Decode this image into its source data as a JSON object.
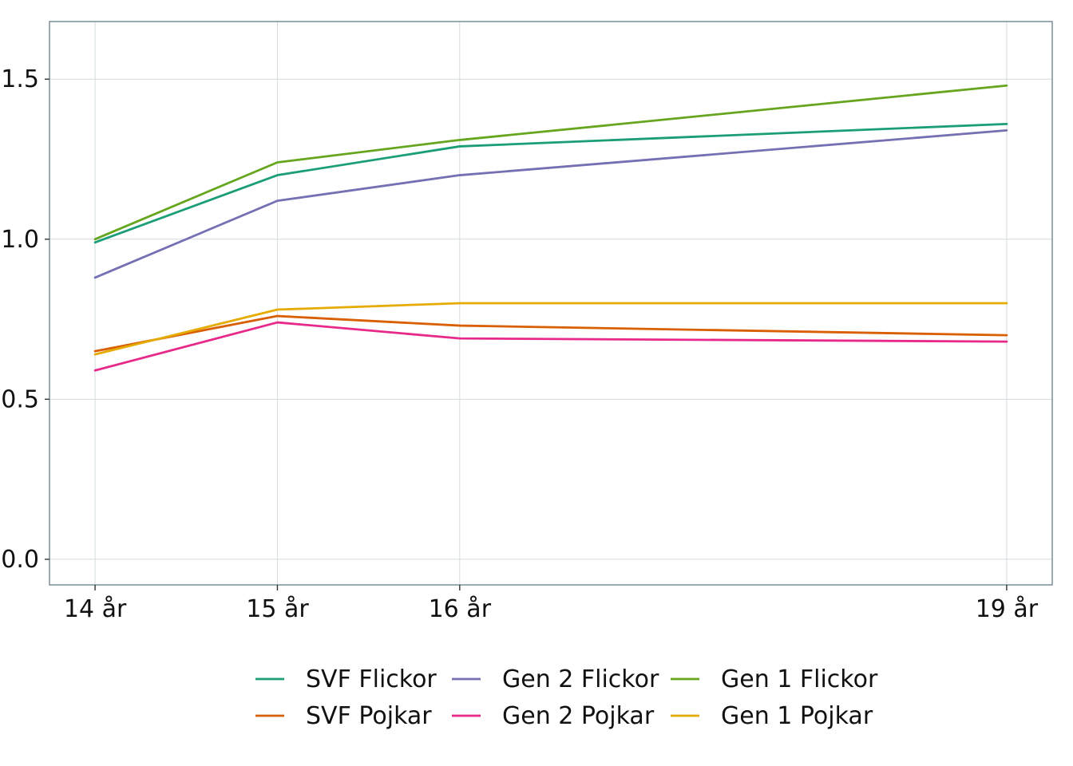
{
  "chart_data": {
    "type": "line",
    "title": "",
    "xlabel": "",
    "ylabel": "",
    "categories": [
      "14 år",
      "15 år",
      "16 år",
      "19 år"
    ],
    "x": [
      14,
      15,
      16,
      19
    ],
    "xlim": [
      13.75,
      19.25
    ],
    "ylim": [
      -0.08,
      1.68
    ],
    "yticks": [
      0.0,
      0.5,
      1.0,
      1.5
    ],
    "ytick_labels": [
      "0.0",
      "0.5",
      "1.0",
      "1.5"
    ],
    "grid": true,
    "legend_position": "bottom",
    "series": [
      {
        "name": "SVF Flickor",
        "color": "#1b9e77",
        "values": [
          0.99,
          1.2,
          1.29,
          1.36
        ]
      },
      {
        "name": "SVF Pojkar",
        "color": "#d95f02",
        "values": [
          0.65,
          0.76,
          0.73,
          0.7
        ]
      },
      {
        "name": "Gen 2 Flickor",
        "color": "#7570b3",
        "values": [
          0.88,
          1.12,
          1.2,
          1.34
        ]
      },
      {
        "name": "Gen 2 Pojkar",
        "color": "#e7298a",
        "values": [
          0.59,
          0.74,
          0.69,
          0.68
        ]
      },
      {
        "name": "Gen 1 Flickor",
        "color": "#66a61e",
        "values": [
          1.0,
          1.24,
          1.31,
          1.48
        ]
      },
      {
        "name": "Gen 1 Pojkar",
        "color": "#e6ab02",
        "values": [
          0.64,
          0.78,
          0.8,
          0.8
        ]
      }
    ]
  }
}
